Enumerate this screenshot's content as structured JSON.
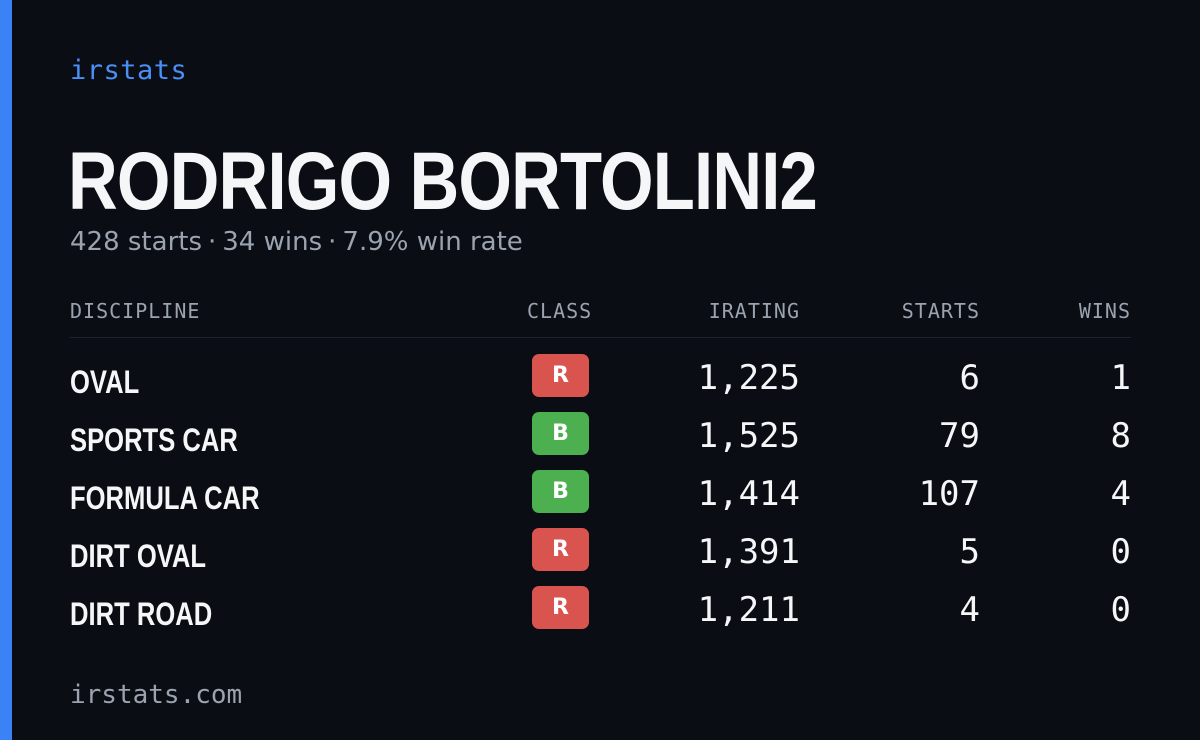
{
  "brand": "irstats",
  "driver": {
    "name": "RODRIGO BORTOLINI2",
    "summary": {
      "starts": "428 starts",
      "wins": "34 wins",
      "win_rate": "7.9% win rate",
      "separator": "·"
    }
  },
  "table": {
    "headers": {
      "discipline": "DISCIPLINE",
      "class": "CLASS",
      "irating": "IRATING",
      "starts": "STARTS",
      "wins": "WINS"
    },
    "rows": [
      {
        "discipline": "OVAL",
        "class": "R",
        "class_color": "#d9534f",
        "irating": "1,225",
        "starts": "6",
        "wins": "1"
      },
      {
        "discipline": "SPORTS CAR",
        "class": "B",
        "class_color": "#4caf50",
        "irating": "1,525",
        "starts": "79",
        "wins": "8"
      },
      {
        "discipline": "FORMULA CAR",
        "class": "B",
        "class_color": "#4caf50",
        "irating": "1,414",
        "starts": "107",
        "wins": "4"
      },
      {
        "discipline": "DIRT OVAL",
        "class": "R",
        "class_color": "#d9534f",
        "irating": "1,391",
        "starts": "5",
        "wins": "0"
      },
      {
        "discipline": "DIRT ROAD",
        "class": "R",
        "class_color": "#d9534f",
        "irating": "1,211",
        "starts": "4",
        "wins": "0"
      }
    ]
  },
  "footer": "irstats.com",
  "colors": {
    "accent": "#3b82f6",
    "background": "#0a0d13",
    "class_r": "#d9534f",
    "class_b": "#4caf50"
  }
}
